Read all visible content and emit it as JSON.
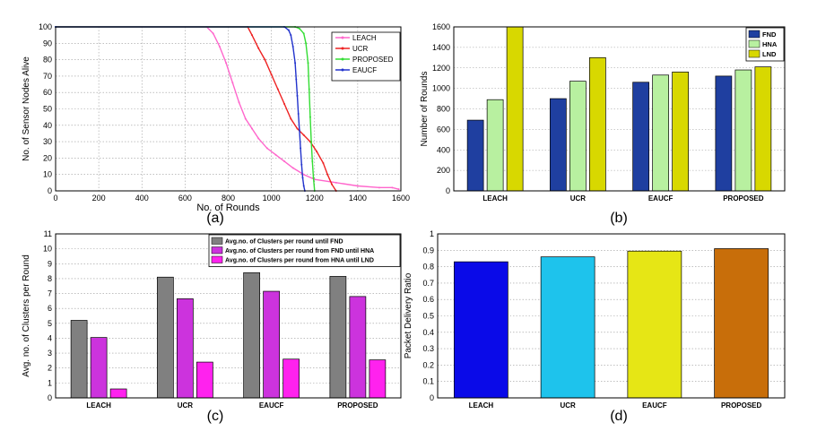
{
  "panel_captions": [
    "(a)",
    "(b)",
    "(c)",
    "(d)"
  ],
  "colors": {
    "leach": "#ff66cc",
    "ucr": "#ee2222",
    "proposed": "#33dd33",
    "eaucf": "#2233cc",
    "fnd": "#1f3fa0",
    "hna": "#b8f0a0",
    "lnd": "#d8d800",
    "c_fnd": "#808080",
    "c_hna": "#cc33dd",
    "c_lnd": "#ff22ee",
    "pdr": [
      "#0a0ae8",
      "#1ec3ec",
      "#e6e615",
      "#c86e0a"
    ]
  },
  "chart_data": [
    {
      "type": "line",
      "xlabel": "No. of Rounds",
      "ylabel": "No. of  Sensor Nodes Alive",
      "xlim": [
        0,
        1600
      ],
      "ylim": [
        0,
        100
      ],
      "xticks": [
        0,
        200,
        400,
        600,
        800,
        1000,
        1200,
        1400,
        1600
      ],
      "yticks": [
        0,
        10,
        20,
        30,
        40,
        50,
        60,
        70,
        80,
        90,
        100
      ],
      "grid": true,
      "legend_position": "top-right",
      "series": [
        {
          "name": "LEACH",
          "color_key": "leach",
          "x": [
            0,
            700,
            730,
            760,
            790,
            820,
            850,
            880,
            910,
            940,
            980,
            1020,
            1060,
            1100,
            1150,
            1200,
            1300,
            1400,
            1500,
            1560,
            1590
          ],
          "y": [
            100,
            100,
            96,
            88,
            78,
            66,
            54,
            44,
            38,
            32,
            26,
            22,
            18,
            14,
            10,
            7,
            5,
            3,
            2,
            2,
            1
          ]
        },
        {
          "name": "UCR",
          "color_key": "ucr",
          "x": [
            0,
            890,
            910,
            940,
            970,
            1000,
            1030,
            1060,
            1090,
            1120,
            1150,
            1180,
            1210,
            1240,
            1260,
            1280,
            1300
          ],
          "y": [
            100,
            100,
            95,
            87,
            80,
            71,
            62,
            53,
            44,
            38,
            34,
            30,
            24,
            17,
            10,
            4,
            0
          ]
        },
        {
          "name": "PROPOSED",
          "color_key": "proposed",
          "x": [
            0,
            1110,
            1130,
            1150,
            1160,
            1170,
            1175,
            1180,
            1185,
            1190,
            1195,
            1200
          ],
          "y": [
            100,
            100,
            99,
            96,
            90,
            78,
            62,
            45,
            30,
            18,
            8,
            0
          ]
        },
        {
          "name": "EAUCF",
          "color_key": "eaucf",
          "x": [
            0,
            1060,
            1080,
            1090,
            1100,
            1110,
            1115,
            1120,
            1125,
            1130,
            1135,
            1140,
            1145,
            1150,
            1155
          ],
          "y": [
            100,
            100,
            98,
            95,
            88,
            78,
            68,
            58,
            47,
            37,
            26,
            16,
            8,
            3,
            0
          ]
        }
      ]
    },
    {
      "type": "bar",
      "ylabel": "Number of Rounds",
      "ylim": [
        0,
        1600
      ],
      "yticks": [
        0,
        200,
        400,
        600,
        800,
        1000,
        1200,
        1400,
        1600
      ],
      "categories": [
        "LEACH",
        "UCR",
        "EAUCF",
        "PROPOSED"
      ],
      "grid": true,
      "legend_position": "top-right",
      "series": [
        {
          "name": "FND",
          "color_key": "fnd",
          "values": [
            690,
            900,
            1060,
            1120
          ]
        },
        {
          "name": "HNA",
          "color_key": "hna",
          "values": [
            890,
            1070,
            1130,
            1180
          ]
        },
        {
          "name": "LND",
          "color_key": "lnd",
          "values": [
            1600,
            1300,
            1160,
            1210
          ]
        }
      ]
    },
    {
      "type": "bar",
      "ylabel": "Avg. no. of Clusters per Round",
      "ylim": [
        0,
        11
      ],
      "yticks": [
        0,
        1,
        2,
        3,
        4,
        5,
        6,
        7,
        8,
        9,
        10,
        11
      ],
      "categories": [
        "LEACH",
        "UCR",
        "EAUCF",
        "PROPOSED"
      ],
      "grid": true,
      "legend_position": "top-right",
      "series": [
        {
          "name": "Avg.no. of Clusters per round until FND",
          "color_key": "c_fnd",
          "values": [
            5.2,
            8.1,
            8.4,
            8.15
          ]
        },
        {
          "name": "Avg.no. of Clusters per round from FND until HNA",
          "color_key": "c_hna",
          "values": [
            4.05,
            6.65,
            7.15,
            6.8
          ]
        },
        {
          "name": "Avg.no. of Clusters per round from HNA until LND",
          "color_key": "c_lnd",
          "values": [
            0.6,
            2.4,
            2.6,
            2.55
          ]
        }
      ]
    },
    {
      "type": "bar",
      "ylabel": "Packet Delivery Ratio",
      "ylim": [
        0,
        1
      ],
      "yticks": [
        0,
        0.1,
        0.2,
        0.3,
        0.4,
        0.5,
        0.6,
        0.7,
        0.8,
        0.9,
        1
      ],
      "categories": [
        "LEACH",
        "UCR",
        "EAUCF",
        "PROPOSED"
      ],
      "grid": true,
      "values": [
        0.83,
        0.86,
        0.895,
        0.91
      ]
    }
  ]
}
